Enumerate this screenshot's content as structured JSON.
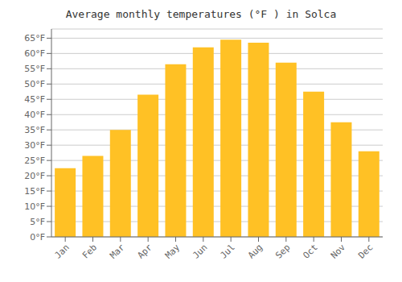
{
  "chart_data": {
    "type": "bar",
    "title": "Average monthly temperatures (°F ) in Solca",
    "categories": [
      "Jan",
      "Feb",
      "Mar",
      "Apr",
      "May",
      "Jun",
      "Jul",
      "Aug",
      "Sep",
      "Oct",
      "Nov",
      "Dec"
    ],
    "values": [
      22.5,
      26.5,
      35.0,
      46.5,
      56.5,
      62.0,
      64.5,
      63.5,
      57.0,
      47.5,
      37.5,
      28.0
    ],
    "color": "#FFC125",
    "ylim": [
      0,
      68
    ],
    "yticks": [
      {
        "value": 0,
        "label": "0°F"
      },
      {
        "value": 5,
        "label": "5°F"
      },
      {
        "value": 10,
        "label": "10°F"
      },
      {
        "value": 15,
        "label": "15°F"
      },
      {
        "value": 20,
        "label": "20°F"
      },
      {
        "value": 25,
        "label": "25°F"
      },
      {
        "value": 30,
        "label": "30°F"
      },
      {
        "value": 35,
        "label": "35°F"
      },
      {
        "value": 40,
        "label": "40°F"
      },
      {
        "value": 45,
        "label": "45°F"
      },
      {
        "value": 50,
        "label": "50°F"
      },
      {
        "value": 55,
        "label": "55°F"
      },
      {
        "value": 60,
        "label": "60°F"
      },
      {
        "value": 65,
        "label": "65°F"
      }
    ],
    "grid": true
  }
}
